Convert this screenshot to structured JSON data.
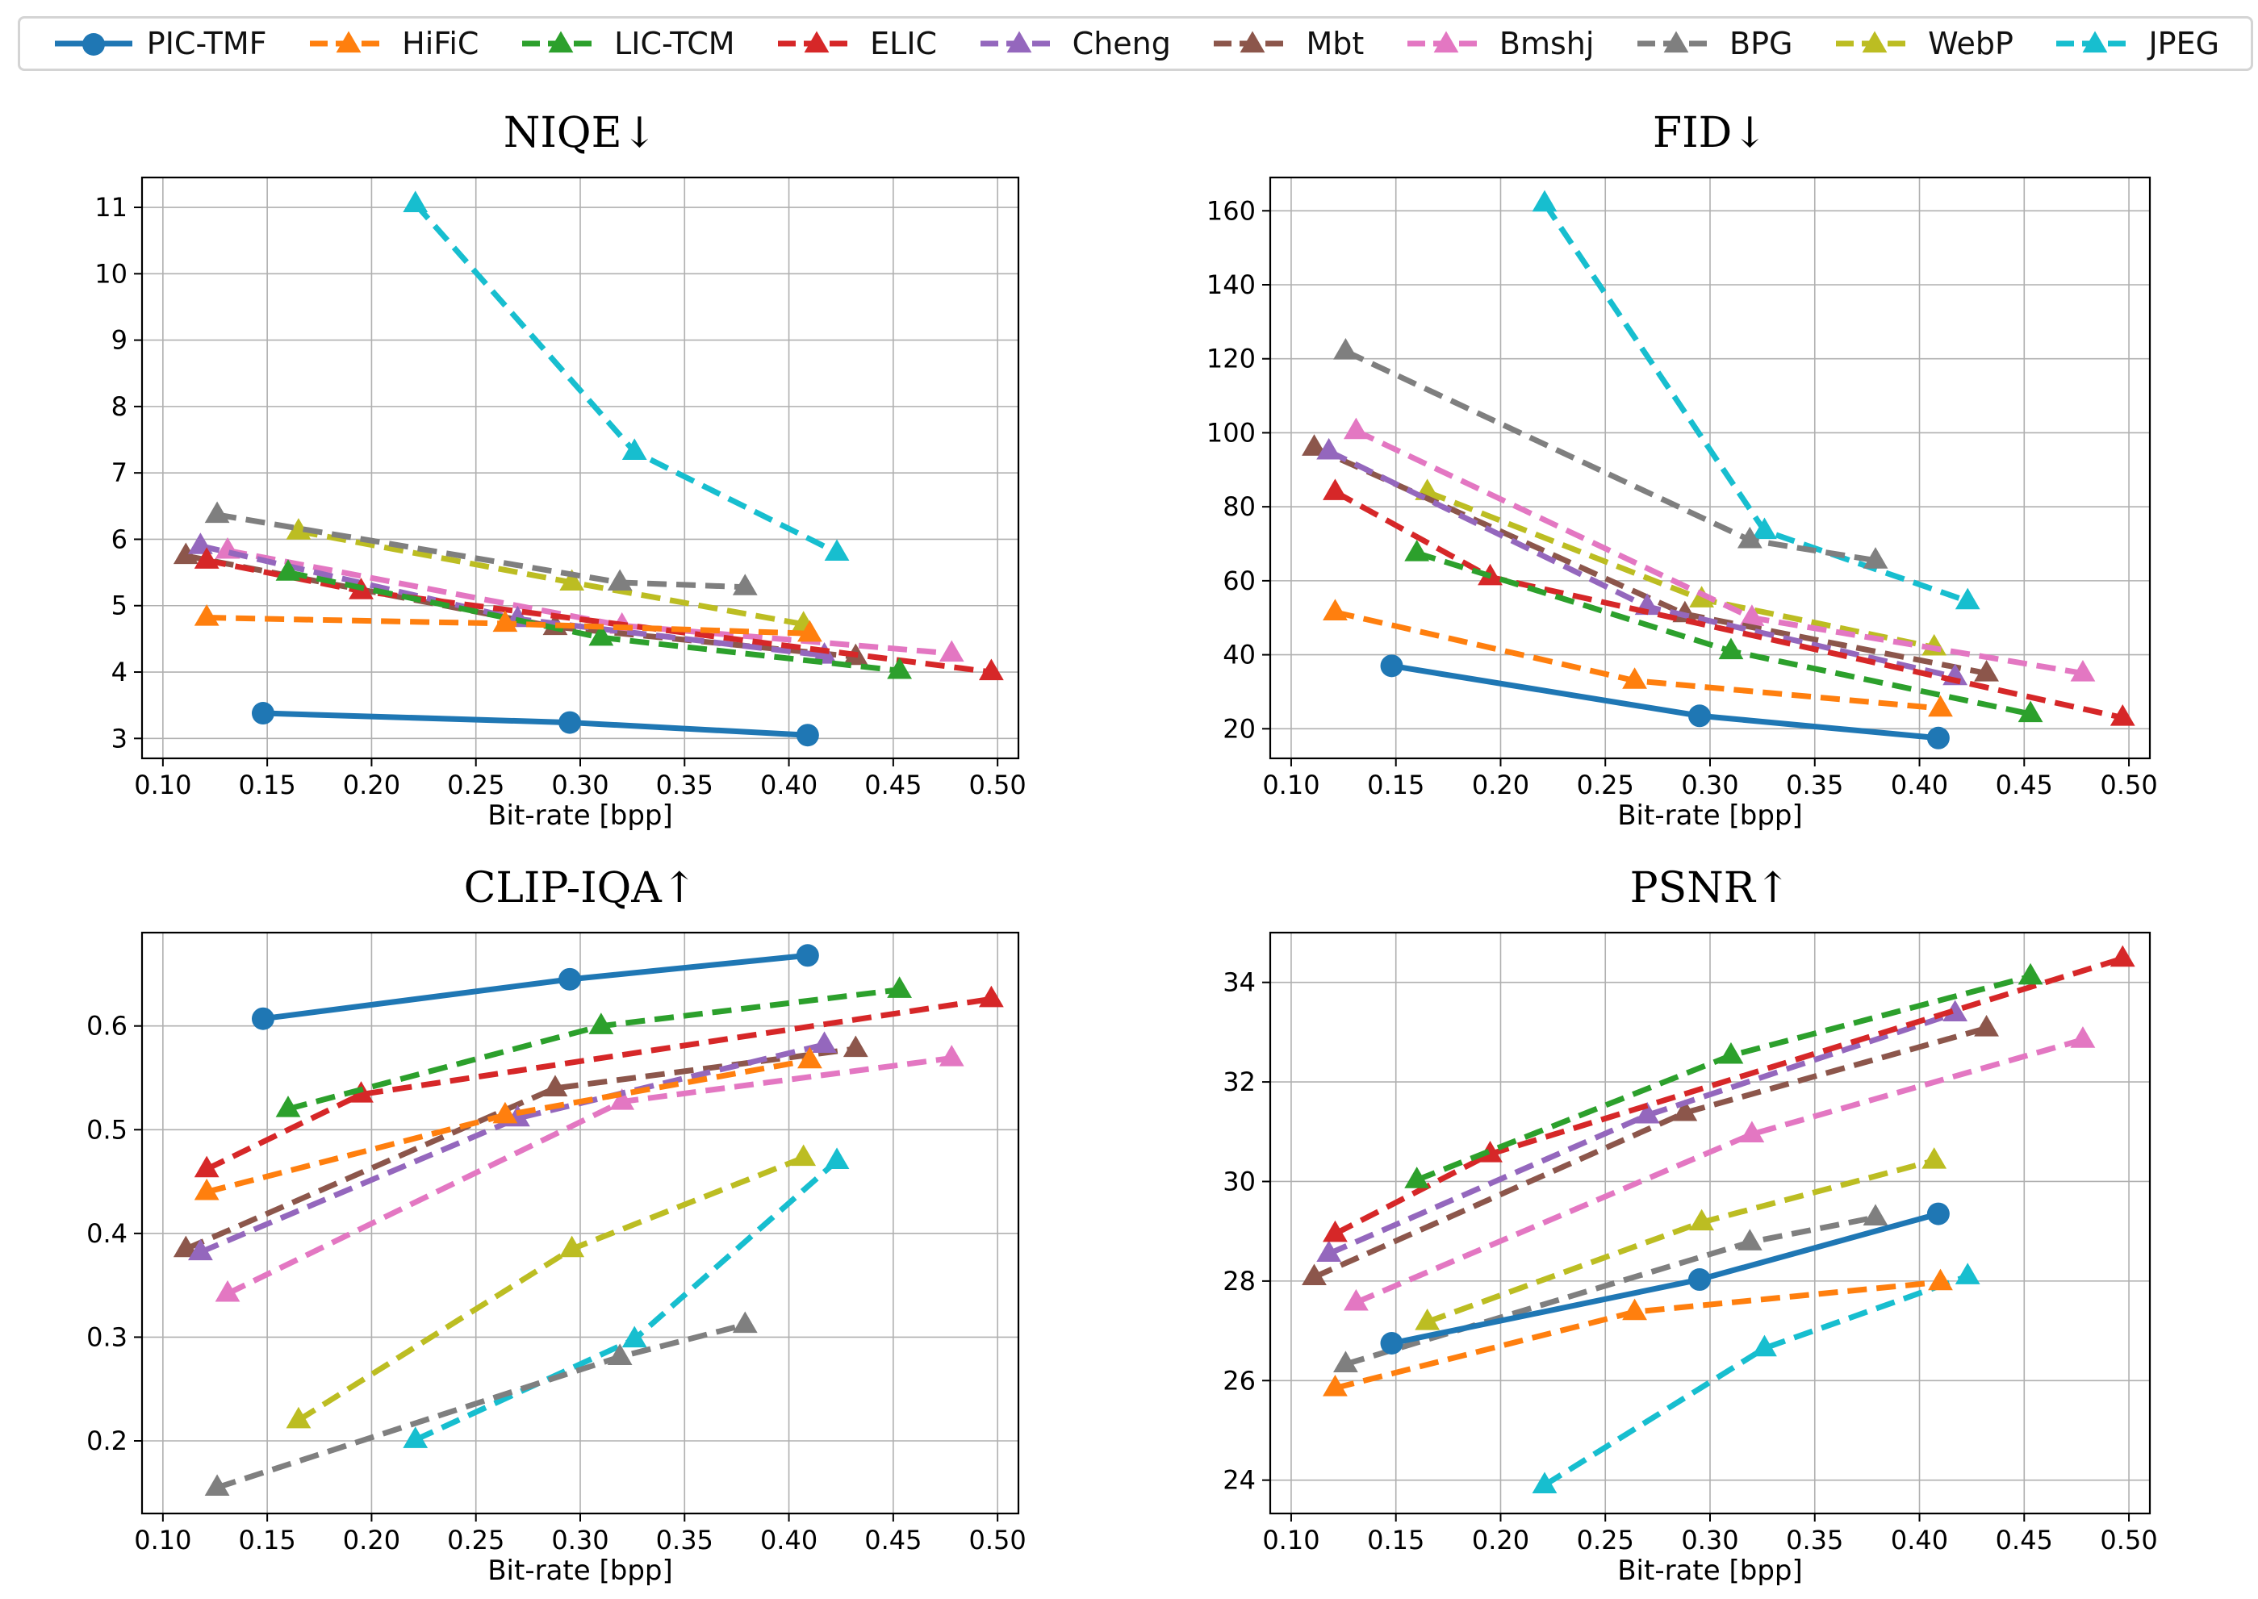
{
  "legend": [
    {
      "name": "PIC-TMF",
      "color": "#1f77b4",
      "marker": "circle",
      "dash": false
    },
    {
      "name": "HiFiC",
      "color": "#ff7f0e",
      "marker": "triangle",
      "dash": true
    },
    {
      "name": "LIC-TCM",
      "color": "#2ca02c",
      "marker": "triangle",
      "dash": true
    },
    {
      "name": "ELIC",
      "color": "#d62728",
      "marker": "triangle",
      "dash": true
    },
    {
      "name": "Cheng",
      "color": "#9467bd",
      "marker": "triangle",
      "dash": true
    },
    {
      "name": "Mbt",
      "color": "#8c564b",
      "marker": "triangle",
      "dash": true
    },
    {
      "name": "Bmshj",
      "color": "#e377c2",
      "marker": "triangle",
      "dash": true
    },
    {
      "name": "BPG",
      "color": "#7f7f7f",
      "marker": "triangle",
      "dash": true
    },
    {
      "name": "WebP",
      "color": "#bcbd22",
      "marker": "triangle",
      "dash": true
    },
    {
      "name": "JPEG",
      "color": "#17becf",
      "marker": "triangle",
      "dash": true
    }
  ],
  "chart_data": [
    {
      "type": "line",
      "title": "NIQE↓",
      "xlabel": "Bit-rate [bpp]",
      "ylabel": "",
      "xlim": [
        0.09,
        0.51
      ],
      "ylim": [
        2.7,
        11.45
      ],
      "xticks": [
        0.1,
        0.15,
        0.2,
        0.25,
        0.3,
        0.35,
        0.4,
        0.45,
        0.5
      ],
      "xticklabels": [
        "0.10",
        "0.15",
        "0.20",
        "0.25",
        "0.30",
        "0.35",
        "0.40",
        "0.45",
        "0.50"
      ],
      "yticks": [
        3,
        4,
        5,
        6,
        7,
        8,
        9,
        10,
        11
      ],
      "yticklabels": [
        "3",
        "4",
        "5",
        "6",
        "7",
        "8",
        "9",
        "10",
        "11"
      ],
      "grid": true,
      "series": [
        {
          "name": "PIC-TMF",
          "x": [
            0.148,
            0.295,
            0.409
          ],
          "y": [
            3.38,
            3.24,
            3.05
          ]
        },
        {
          "name": "HiFiC",
          "x": [
            0.121,
            0.264,
            0.41
          ],
          "y": [
            4.82,
            4.73,
            4.58
          ]
        },
        {
          "name": "LIC-TCM",
          "x": [
            0.16,
            0.31,
            0.453
          ],
          "y": [
            5.5,
            4.52,
            4.02
          ]
        },
        {
          "name": "ELIC",
          "x": [
            0.121,
            0.195,
            0.497
          ],
          "y": [
            5.68,
            5.22,
            4.0
          ]
        },
        {
          "name": "Cheng",
          "x": [
            0.118,
            0.27,
            0.417
          ],
          "y": [
            5.9,
            4.8,
            4.25
          ]
        },
        {
          "name": "Mbt",
          "x": [
            0.111,
            0.288,
            0.432
          ],
          "y": [
            5.75,
            4.68,
            4.23
          ]
        },
        {
          "name": "Bmshj",
          "x": [
            0.131,
            0.32,
            0.478
          ],
          "y": [
            5.83,
            4.7,
            4.28
          ]
        },
        {
          "name": "BPG",
          "x": [
            0.126,
            0.319,
            0.379
          ],
          "y": [
            6.37,
            5.35,
            5.28
          ]
        },
        {
          "name": "WebP",
          "x": [
            0.165,
            0.296,
            0.407
          ],
          "y": [
            6.12,
            5.35,
            4.72
          ]
        },
        {
          "name": "JPEG",
          "x": [
            0.221,
            0.326,
            0.423
          ],
          "y": [
            11.05,
            7.32,
            5.8
          ]
        }
      ]
    },
    {
      "type": "line",
      "title": "FID↓",
      "xlabel": "Bit-rate [bpp]",
      "ylabel": "",
      "xlim": [
        0.09,
        0.51
      ],
      "ylim": [
        12.0,
        169.0
      ],
      "xticks": [
        0.1,
        0.15,
        0.2,
        0.25,
        0.3,
        0.35,
        0.4,
        0.45,
        0.5
      ],
      "xticklabels": [
        "0.10",
        "0.15",
        "0.20",
        "0.25",
        "0.30",
        "0.35",
        "0.40",
        "0.45",
        "0.50"
      ],
      "yticks": [
        20,
        40,
        60,
        80,
        100,
        120,
        140,
        160
      ],
      "yticklabels": [
        "20",
        "40",
        "60",
        "80",
        "100",
        "120",
        "140",
        "160"
      ],
      "grid": true,
      "series": [
        {
          "name": "PIC-TMF",
          "x": [
            0.148,
            0.295,
            0.409
          ],
          "y": [
            37,
            23.5,
            17.5
          ]
        },
        {
          "name": "HiFiC",
          "x": [
            0.121,
            0.264,
            0.41
          ],
          "y": [
            51.5,
            33,
            25.5
          ]
        },
        {
          "name": "LIC-TCM",
          "x": [
            0.16,
            0.31,
            0.453
          ],
          "y": [
            67.5,
            41,
            24
          ]
        },
        {
          "name": "ELIC",
          "x": [
            0.121,
            0.195,
            0.497
          ],
          "y": [
            84,
            61,
            23
          ]
        },
        {
          "name": "Cheng",
          "x": [
            0.118,
            0.27,
            0.417
          ],
          "y": [
            95,
            53,
            34
          ]
        },
        {
          "name": "Mbt",
          "x": [
            0.111,
            0.288,
            0.432
          ],
          "y": [
            96,
            51,
            35
          ]
        },
        {
          "name": "Bmshj",
          "x": [
            0.131,
            0.32,
            0.478
          ],
          "y": [
            100.5,
            50,
            35
          ]
        },
        {
          "name": "BPG",
          "x": [
            0.126,
            0.319,
            0.379
          ],
          "y": [
            122,
            71,
            65.5
          ]
        },
        {
          "name": "WebP",
          "x": [
            0.165,
            0.296,
            0.407
          ],
          "y": [
            84,
            55,
            42
          ]
        },
        {
          "name": "JPEG",
          "x": [
            0.221,
            0.326,
            0.423
          ],
          "y": [
            162,
            73.5,
            54.5
          ]
        }
      ]
    },
    {
      "type": "line",
      "title": "CLIP-IQA↑",
      "xlabel": "Bit-rate [bpp]",
      "ylabel": "",
      "xlim": [
        0.09,
        0.51
      ],
      "ylim": [
        0.13,
        0.69
      ],
      "xticks": [
        0.1,
        0.15,
        0.2,
        0.25,
        0.3,
        0.35,
        0.4,
        0.45,
        0.5
      ],
      "xticklabels": [
        "0.10",
        "0.15",
        "0.20",
        "0.25",
        "0.30",
        "0.35",
        "0.40",
        "0.45",
        "0.50"
      ],
      "yticks": [
        0.2,
        0.3,
        0.4,
        0.5,
        0.6
      ],
      "yticklabels": [
        "0.2",
        "0.3",
        "0.4",
        "0.5",
        "0.6"
      ],
      "grid": true,
      "series": [
        {
          "name": "PIC-TMF",
          "x": [
            0.148,
            0.295,
            0.409
          ],
          "y": [
            0.607,
            0.645,
            0.668
          ]
        },
        {
          "name": "HiFiC",
          "x": [
            0.121,
            0.264,
            0.41
          ],
          "y": [
            0.44,
            0.514,
            0.567
          ]
        },
        {
          "name": "LIC-TCM",
          "x": [
            0.16,
            0.31,
            0.453
          ],
          "y": [
            0.52,
            0.6,
            0.635
          ]
        },
        {
          "name": "ELIC",
          "x": [
            0.121,
            0.195,
            0.497
          ],
          "y": [
            0.462,
            0.534,
            0.626
          ]
        },
        {
          "name": "Cheng",
          "x": [
            0.118,
            0.27,
            0.417
          ],
          "y": [
            0.382,
            0.511,
            0.582
          ]
        },
        {
          "name": "Mbt",
          "x": [
            0.111,
            0.288,
            0.432
          ],
          "y": [
            0.385,
            0.54,
            0.578
          ]
        },
        {
          "name": "Bmshj",
          "x": [
            0.131,
            0.32,
            0.478
          ],
          "y": [
            0.342,
            0.527,
            0.569
          ]
        },
        {
          "name": "BPG",
          "x": [
            0.126,
            0.319,
            0.379
          ],
          "y": [
            0.155,
            0.281,
            0.312
          ]
        },
        {
          "name": "WebP",
          "x": [
            0.165,
            0.296,
            0.407
          ],
          "y": [
            0.22,
            0.385,
            0.473
          ]
        },
        {
          "name": "JPEG",
          "x": [
            0.221,
            0.326,
            0.423
          ],
          "y": [
            0.201,
            0.298,
            0.47
          ]
        }
      ]
    },
    {
      "type": "line",
      "title": "PSNR↑",
      "xlabel": "Bit-rate [bpp]",
      "ylabel": "",
      "xlim": [
        0.09,
        0.51
      ],
      "ylim": [
        23.33,
        35.0
      ],
      "xticks": [
        0.1,
        0.15,
        0.2,
        0.25,
        0.3,
        0.35,
        0.4,
        0.45,
        0.5
      ],
      "xticklabels": [
        "0.10",
        "0.15",
        "0.20",
        "0.25",
        "0.30",
        "0.35",
        "0.40",
        "0.45",
        "0.50"
      ],
      "yticks": [
        24,
        26,
        28,
        30,
        32,
        34
      ],
      "yticklabels": [
        "24",
        "26",
        "28",
        "30",
        "32",
        "34"
      ],
      "grid": true,
      "series": [
        {
          "name": "PIC-TMF",
          "x": [
            0.148,
            0.295,
            0.409
          ],
          "y": [
            26.75,
            28.03,
            29.35
          ]
        },
        {
          "name": "HiFiC",
          "x": [
            0.121,
            0.264,
            0.41
          ],
          "y": [
            25.85,
            27.38,
            27.98
          ]
        },
        {
          "name": "LIC-TCM",
          "x": [
            0.16,
            0.31,
            0.453
          ],
          "y": [
            30.03,
            32.53,
            34.12
          ]
        },
        {
          "name": "ELIC",
          "x": [
            0.121,
            0.195,
            0.497
          ],
          "y": [
            28.95,
            30.55,
            34.48
          ]
        },
        {
          "name": "Cheng",
          "x": [
            0.118,
            0.27,
            0.417
          ],
          "y": [
            28.55,
            31.33,
            33.38
          ]
        },
        {
          "name": "Mbt",
          "x": [
            0.111,
            0.288,
            0.432
          ],
          "y": [
            28.08,
            31.38,
            33.08
          ]
        },
        {
          "name": "Bmshj",
          "x": [
            0.131,
            0.32,
            0.478
          ],
          "y": [
            27.57,
            30.95,
            32.85
          ]
        },
        {
          "name": "BPG",
          "x": [
            0.126,
            0.319,
            0.379
          ],
          "y": [
            26.33,
            28.78,
            29.28
          ]
        },
        {
          "name": "WebP",
          "x": [
            0.165,
            0.296,
            0.407
          ],
          "y": [
            27.18,
            29.18,
            30.42
          ]
        },
        {
          "name": "JPEG",
          "x": [
            0.221,
            0.326,
            0.423
          ],
          "y": [
            23.9,
            26.65,
            28.1
          ]
        }
      ]
    }
  ]
}
